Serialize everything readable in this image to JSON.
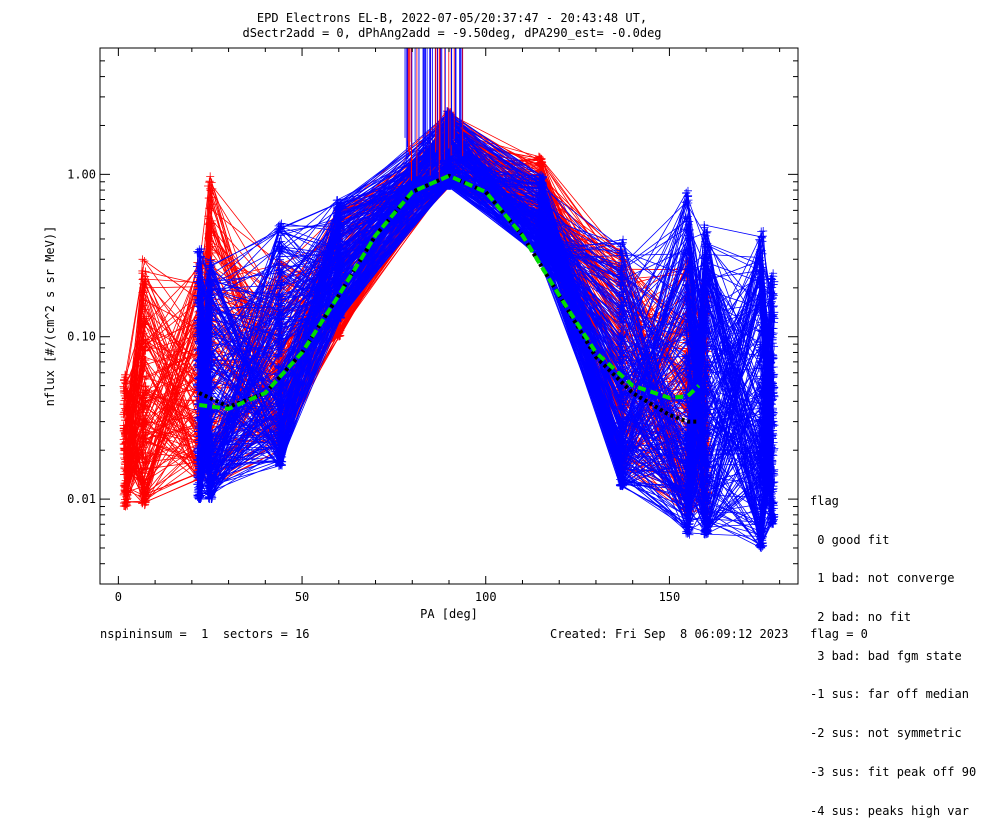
{
  "chart_data": {
    "type": "line",
    "title": "EPD Electrons EL-B, 2022-07-05/20:37:47 - 20:43:48 UT,",
    "subtitle": "dSectr2add = 0, dPhAng2add = -9.50deg, dPA290_est=  -0.0deg",
    "xlabel": "PA [deg]",
    "ylabel": "nflux [#/(cm^2 s sr MeV)]",
    "xlim": [
      -5,
      185
    ],
    "ylim": [
      0.003,
      6.0
    ],
    "y_scale": "log",
    "x_ticks": [
      "0",
      "50",
      "100",
      "150"
    ],
    "x_tick_values": [
      0,
      50,
      100,
      150
    ],
    "y_ticks": [
      "0.01",
      "0.10",
      "1.00"
    ],
    "y_tick_values": [
      0.01,
      0.1,
      1.0
    ],
    "grid": false,
    "series": [
      {
        "color": "#ff0000",
        "style": "lines+plus",
        "x": [
          2,
          7,
          22,
          25,
          44,
          60,
          90,
          115,
          137,
          155,
          160
        ],
        "y_low": [
          0.009,
          0.009,
          0.013,
          0.012,
          0.02,
          0.1,
          0.85,
          0.45,
          0.015,
          0.008,
          0.008
        ],
        "y_high": [
          0.06,
          0.3,
          0.3,
          1.0,
          0.3,
          0.65,
          2.5,
          1.3,
          0.35,
          0.3,
          0.2
        ]
      },
      {
        "color": "#0000ff",
        "style": "lines+plus",
        "x": [
          22,
          25,
          44,
          60,
          90,
          115,
          137,
          155,
          160,
          175,
          178
        ],
        "y_low": [
          0.01,
          0.01,
          0.016,
          0.13,
          0.85,
          0.3,
          0.012,
          0.006,
          0.006,
          0.005,
          0.007
        ],
        "y_high": [
          0.35,
          0.3,
          0.5,
          0.7,
          2.5,
          1.0,
          0.4,
          0.85,
          0.5,
          0.45,
          0.25
        ]
      },
      {
        "color": "#00dd00",
        "style": "dashed-fit",
        "x": [
          22,
          30,
          40,
          50,
          60,
          70,
          80,
          90,
          100,
          110,
          120,
          130,
          140,
          150,
          155,
          158
        ],
        "y": [
          0.038,
          0.036,
          0.045,
          0.08,
          0.18,
          0.42,
          0.78,
          0.98,
          0.78,
          0.42,
          0.18,
          0.08,
          0.05,
          0.042,
          0.043,
          0.05
        ]
      },
      {
        "color": "#000000",
        "style": "dotted-median",
        "x": [
          22,
          30,
          40,
          50,
          60,
          70,
          80,
          90,
          100,
          110,
          120,
          130,
          140,
          150,
          155,
          158
        ],
        "y": [
          0.045,
          0.037,
          0.045,
          0.08,
          0.18,
          0.42,
          0.78,
          0.98,
          0.78,
          0.42,
          0.18,
          0.075,
          0.045,
          0.033,
          0.03,
          0.03
        ]
      }
    ],
    "legend": {
      "placement": "right",
      "title": "flag",
      "entries": [
        " 0 good fit",
        " 1 bad: not converge",
        " 2 bad: no fit",
        " 3 bad: bad fgm state",
        "-1 sus: far off median",
        "-2 sus: not symmetric",
        "-3 sus: fit peak off 90",
        "-4 sus: peaks high var"
      ]
    }
  },
  "footer": {
    "left": "nspininsum =  1  sectors = 16",
    "right": "Created: Fri Sep  8 06:09:12 2023   flag = 0"
  },
  "colors": {
    "red": "#ff0000",
    "blue": "#0000ff",
    "fit": "#00dd00",
    "median": "#000000"
  }
}
